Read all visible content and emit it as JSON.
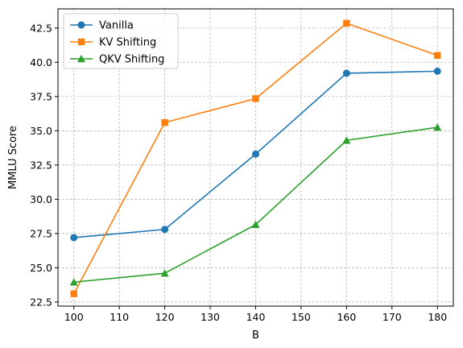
{
  "chart_data": {
    "type": "line",
    "title": "",
    "xlabel": "B",
    "ylabel": "MMLU Score",
    "xlim": [
      96.5,
      183.5
    ],
    "ylim": [
      22.2,
      43.9
    ],
    "xticks": [
      100,
      110,
      120,
      130,
      140,
      150,
      160,
      170,
      180
    ],
    "yticks": [
      22.5,
      25.0,
      27.5,
      30.0,
      32.5,
      35.0,
      37.5,
      40.0,
      42.5
    ],
    "grid": true,
    "legend_position": "top-left",
    "x": [
      100,
      120,
      140,
      160,
      180
    ],
    "series": [
      {
        "name": "Vanilla",
        "color": "#1f77b4",
        "marker": "circle",
        "values": [
          27.2,
          27.8,
          33.3,
          39.2,
          39.35
        ]
      },
      {
        "name": "KV Shifting",
        "color": "#ff7f0e",
        "marker": "square",
        "values": [
          23.1,
          35.6,
          37.35,
          42.85,
          40.5
        ]
      },
      {
        "name": "QKV Shifting",
        "color": "#2ca02c",
        "marker": "triangle",
        "values": [
          23.95,
          24.6,
          28.15,
          34.3,
          35.25
        ]
      }
    ]
  }
}
